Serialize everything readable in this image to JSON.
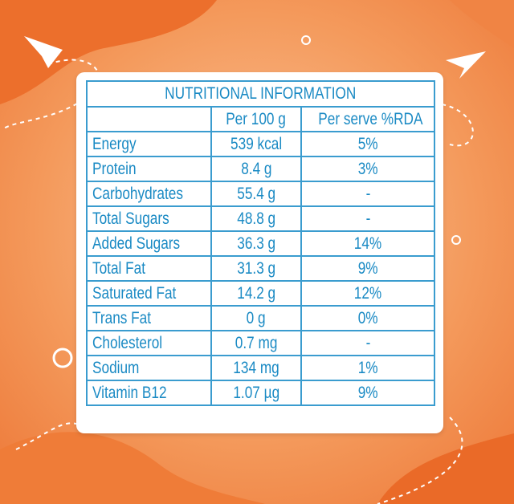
{
  "table": {
    "title": "NUTRITIONAL INFORMATION",
    "header": [
      "Per 100 g",
      "Per serve %RDA"
    ],
    "rows": [
      [
        "Energy",
        "539 kcal",
        "5%"
      ],
      [
        "Protein",
        "8.4 g",
        "3%"
      ],
      [
        "Carbohydrates",
        "55.4 g",
        "-"
      ],
      [
        "Total Sugars",
        "48.8 g",
        "-"
      ],
      [
        "Added Sugars",
        "36.3 g",
        "14%"
      ],
      [
        "Total Fat",
        "31.3 g",
        "9%"
      ],
      [
        "Saturated Fat",
        "14.2 g",
        "12%"
      ],
      [
        "Trans Fat",
        "0 g",
        "0%"
      ],
      [
        "Cholesterol",
        "0.7 mg",
        "-"
      ],
      [
        "Sodium",
        "134 mg",
        "1%"
      ],
      [
        "Vitamin B12",
        "1.07 µg",
        "9%"
      ]
    ]
  }
}
